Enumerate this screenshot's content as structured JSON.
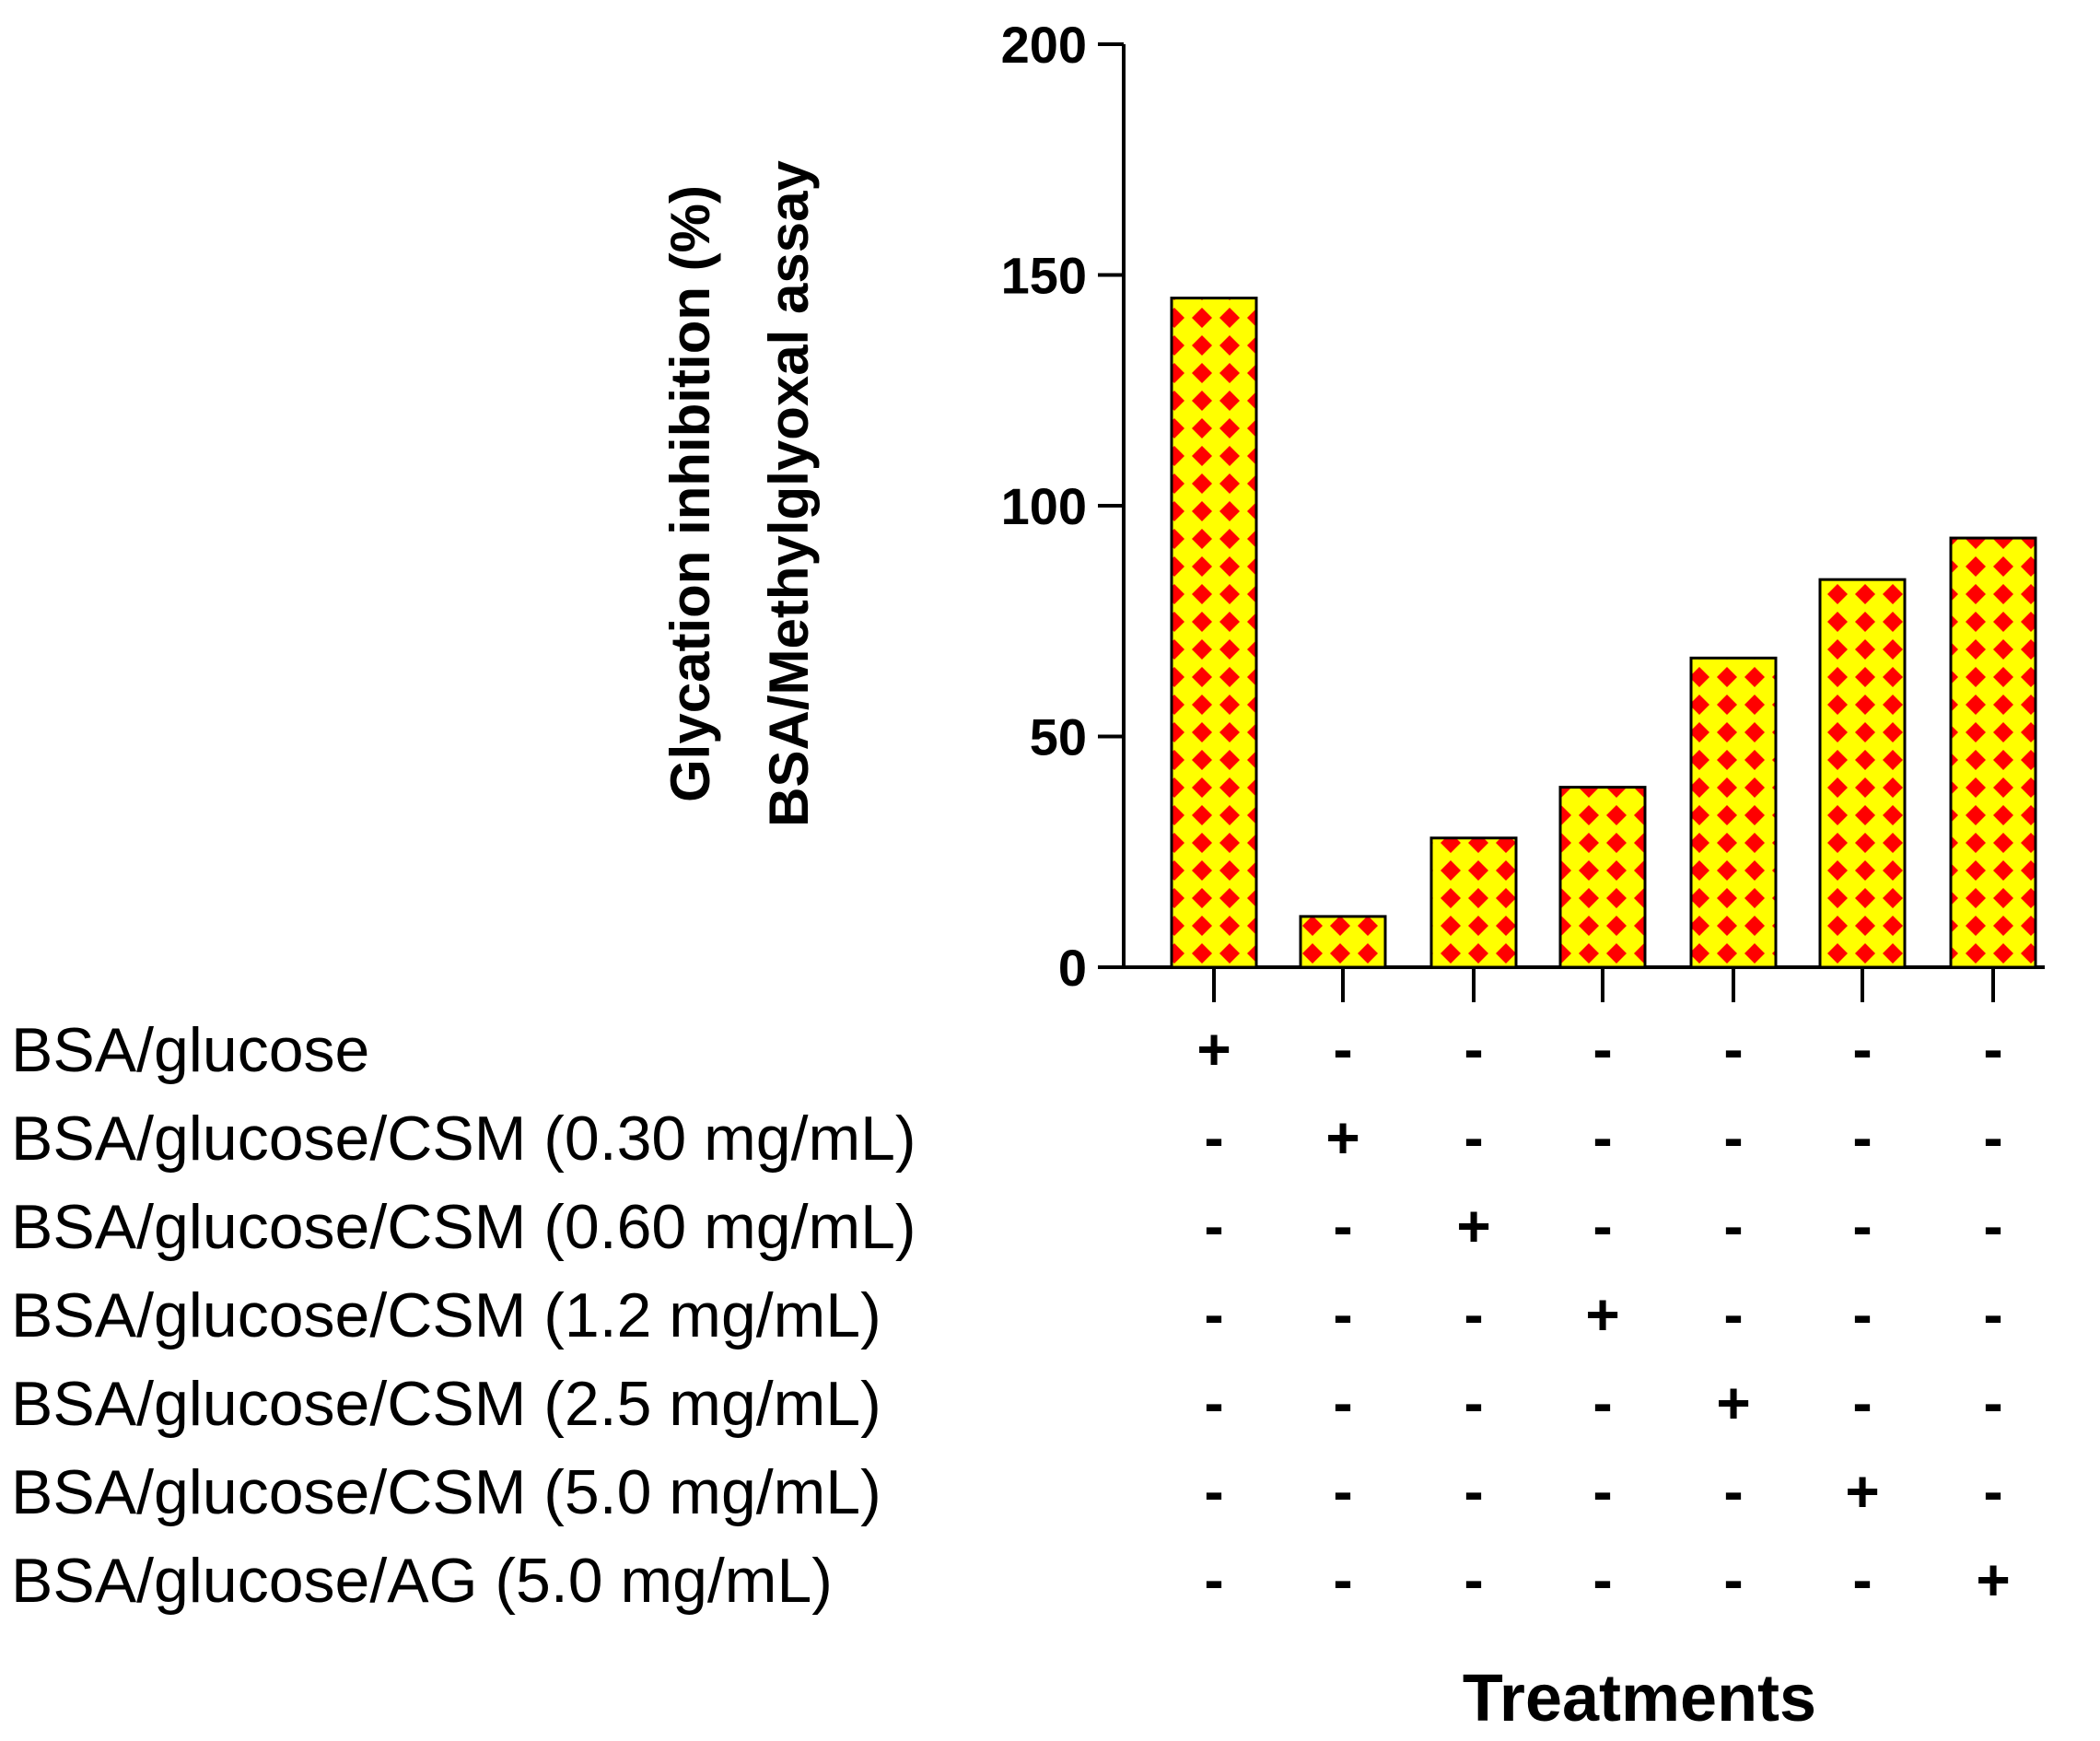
{
  "chart_data": {
    "type": "bar",
    "title": "",
    "ylabel_lines": [
      "Glycation inhibition (%)",
      "BSA/Methylglyoxal assay"
    ],
    "xlabel": "Treatments",
    "ylim": [
      0,
      200
    ],
    "yticks": [
      0,
      50,
      100,
      150,
      200
    ],
    "values": [
      145,
      11,
      28,
      39,
      67,
      84,
      93
    ],
    "bar_fill_colors": {
      "background": "#FFFF00",
      "pattern": "#FF0000"
    },
    "treatment_rows": [
      {
        "label": "BSA/glucose",
        "signs": [
          "+",
          "-",
          "-",
          "-",
          "-",
          "-",
          "-"
        ]
      },
      {
        "label": "BSA/glucose/CSM (0.30 mg/mL)",
        "signs": [
          "-",
          "+",
          "-",
          "-",
          "-",
          "-",
          "-"
        ]
      },
      {
        "label": "BSA/glucose/CSM (0.60 mg/mL)",
        "signs": [
          "-",
          "-",
          "+",
          "-",
          "-",
          "-",
          "-"
        ]
      },
      {
        "label": "BSA/glucose/CSM (1.2 mg/mL)",
        "signs": [
          "-",
          "-",
          "-",
          "+",
          "-",
          "-",
          "-"
        ]
      },
      {
        "label": "BSA/glucose/CSM (2.5 mg/mL)",
        "signs": [
          "-",
          "-",
          "-",
          "-",
          "+",
          "-",
          "-"
        ]
      },
      {
        "label": "BSA/glucose/CSM (5.0 mg/mL)",
        "signs": [
          "-",
          "-",
          "-",
          "-",
          "-",
          "+",
          "-"
        ]
      },
      {
        "label": "BSA/glucose/AG  (5.0 mg/mL)",
        "signs": [
          "-",
          "-",
          "-",
          "-",
          "-",
          "-",
          "+"
        ]
      }
    ]
  }
}
